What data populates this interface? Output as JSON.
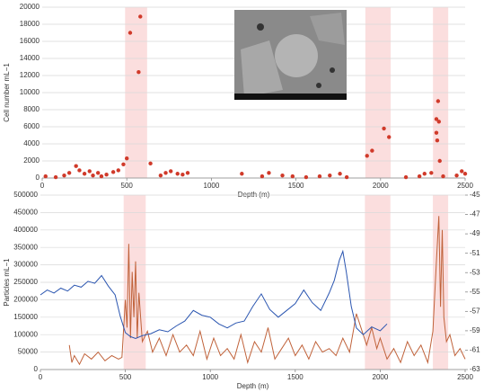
{
  "chart_data": [
    {
      "type": "scatter",
      "x_label": "Depth (m)",
      "y_label": "Cell number mL−1",
      "color": "#d03a2a",
      "grid": true,
      "xlim": [
        0,
        2500
      ],
      "xticks": [
        0,
        500,
        1000,
        1500,
        2000,
        2500
      ],
      "ylim": [
        0,
        20000
      ],
      "yticks": [
        0,
        2000,
        4000,
        6000,
        8000,
        10000,
        12000,
        14000,
        16000,
        18000,
        20000
      ],
      "bands": [
        [
          490,
          620
        ],
        [
          1910,
          2060
        ],
        [
          2310,
          2400
        ]
      ],
      "x": [
        20,
        80,
        130,
        160,
        200,
        220,
        250,
        280,
        300,
        330,
        350,
        380,
        420,
        450,
        480,
        500,
        520,
        580,
        570,
        640,
        700,
        730,
        760,
        800,
        830,
        860,
        1180,
        1300,
        1340,
        1420,
        1480,
        1560,
        1640,
        1700,
        1760,
        1800,
        1920,
        1950,
        2020,
        2050,
        2150,
        2230,
        2260,
        2300,
        2330,
        2340,
        2345,
        2330,
        2335,
        2350,
        2370,
        2450,
        2480,
        2500
      ],
      "values": [
        200,
        100,
        300,
        600,
        1400,
        900,
        500,
        800,
        300,
        600,
        200,
        400,
        700,
        900,
        1600,
        2300,
        17000,
        18900,
        12400,
        1700,
        300,
        600,
        800,
        500,
        400,
        600,
        500,
        200,
        600,
        300,
        200,
        100,
        200,
        300,
        500,
        100,
        2600,
        3200,
        5800,
        4800,
        100,
        200,
        500,
        600,
        6900,
        9000,
        6600,
        5300,
        4400,
        2000,
        200,
        300,
        800,
        500
      ]
    },
    {
      "type": "line",
      "x_label": "Depth (m)",
      "y_label": "Particles mL−1",
      "grid": true,
      "xlim": [
        0,
        2500
      ],
      "xticks": [
        0,
        500,
        1000,
        1500,
        2000,
        2500
      ],
      "ylim": [
        0,
        500000
      ],
      "yticks": [
        0,
        50000,
        100000,
        150000,
        200000,
        250000,
        300000,
        350000,
        400000,
        450000,
        500000
      ],
      "y2lim": [
        -63,
        -45
      ],
      "y2ticks": [
        -45,
        -47,
        -49,
        -51,
        -53,
        -55,
        -57,
        -59,
        -61,
        -63
      ],
      "bands": [
        [
          490,
          620
        ],
        [
          1910,
          2060
        ],
        [
          2310,
          2400
        ]
      ],
      "series": [
        {
          "color": "#c0623a",
          "axis": "y",
          "x": [
            170,
            185,
            200,
            230,
            260,
            300,
            340,
            380,
            420,
            460,
            480,
            500,
            510,
            520,
            530,
            540,
            550,
            560,
            570,
            580,
            600,
            630,
            660,
            700,
            740,
            780,
            820,
            860,
            900,
            940,
            980,
            1020,
            1060,
            1100,
            1140,
            1180,
            1220,
            1260,
            1300,
            1340,
            1380,
            1420,
            1460,
            1500,
            1540,
            1580,
            1620,
            1660,
            1700,
            1740,
            1780,
            1820,
            1860,
            1900,
            1920,
            1950,
            1980,
            2000,
            2040,
            2080,
            2120,
            2160,
            2200,
            2240,
            2280,
            2310,
            2330,
            2345,
            2355,
            2365,
            2375,
            2390,
            2410,
            2440,
            2470,
            2500
          ],
          "values": [
            70000,
            20000,
            40000,
            15000,
            45000,
            30000,
            50000,
            25000,
            40000,
            30000,
            35000,
            200000,
            120000,
            360000,
            90000,
            280000,
            150000,
            310000,
            90000,
            220000,
            80000,
            110000,
            50000,
            90000,
            40000,
            100000,
            50000,
            70000,
            40000,
            110000,
            30000,
            90000,
            40000,
            60000,
            30000,
            100000,
            20000,
            80000,
            50000,
            120000,
            30000,
            60000,
            90000,
            40000,
            70000,
            30000,
            80000,
            50000,
            60000,
            40000,
            90000,
            50000,
            160000,
            100000,
            70000,
            120000,
            60000,
            90000,
            30000,
            60000,
            20000,
            80000,
            40000,
            70000,
            20000,
            110000,
            300000,
            440000,
            180000,
            400000,
            150000,
            80000,
            100000,
            40000,
            60000,
            30000
          ]
        },
        {
          "color": "#2a55b0",
          "axis": "y2",
          "x": [
            0,
            40,
            80,
            120,
            160,
            200,
            240,
            280,
            320,
            360,
            400,
            440,
            470,
            500,
            530,
            560,
            600,
            650,
            700,
            750,
            800,
            850,
            900,
            950,
            1000,
            1050,
            1100,
            1150,
            1200,
            1250,
            1300,
            1350,
            1400,
            1450,
            1500,
            1550,
            1600,
            1650,
            1700,
            1730,
            1760,
            1780,
            1800,
            1830,
            1860,
            1900,
            1950,
            2000,
            2040
          ],
          "values": [
            -55.3,
            -54.8,
            -55.1,
            -54.6,
            -54.9,
            -54.3,
            -54.5,
            -53.9,
            -54.1,
            -53.3,
            -54.4,
            -55.3,
            -57.5,
            -59.2,
            -59.6,
            -59.8,
            -59.5,
            -59.3,
            -58.9,
            -59.1,
            -58.5,
            -58.0,
            -56.9,
            -57.4,
            -57.6,
            -58.3,
            -58.7,
            -58.2,
            -58.0,
            -56.5,
            -55.2,
            -56.8,
            -57.6,
            -56.9,
            -56.2,
            -54.8,
            -56.1,
            -56.9,
            -55.1,
            -53.8,
            -51.7,
            -50.8,
            -52.9,
            -56.5,
            -58.7,
            -59.4,
            -58.6,
            -59.0,
            -58.3
          ]
        }
      ]
    }
  ]
}
